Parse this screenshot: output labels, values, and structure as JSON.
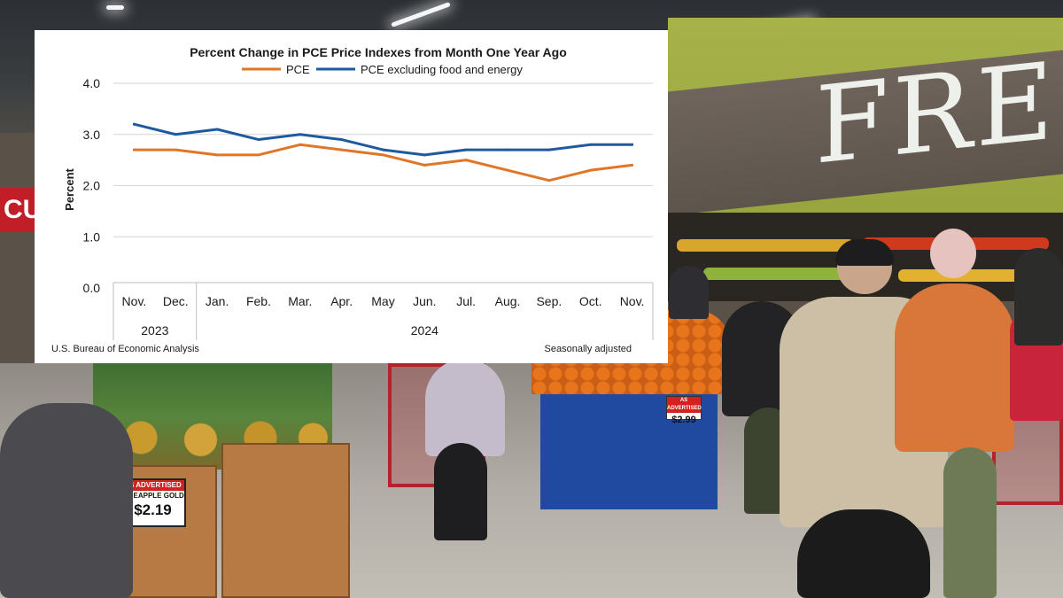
{
  "background_photo": {
    "store_sign": "FRES",
    "left_sign": "CU",
    "pineapple_tag": {
      "ribbon": "AS ADVERTISED",
      "name": "PINEAPPLE GOLD",
      "price": "$2.19"
    },
    "orange_tag": {
      "ribbon": "AS ADVERTISED",
      "price": "$2.99"
    }
  },
  "colors": {
    "pce": "#E07628",
    "pce_core": "#1F5AA0",
    "panel": "#ffffff"
  },
  "chart_data": {
    "type": "line",
    "title": "Percent Change in PCE Price Indexes from Month One Year Ago",
    "ylabel": "Percent",
    "xlabel": "",
    "ylim": [
      0,
      4
    ],
    "yticks": [
      "0.0",
      "1.0",
      "2.0",
      "3.0",
      "4.0"
    ],
    "ytick_values": [
      0,
      1,
      2,
      3,
      4
    ],
    "grid": true,
    "legend_position": "top-center",
    "categories": [
      "Nov.",
      "Dec.",
      "Jan.",
      "Feb.",
      "Mar.",
      "Apr.",
      "May",
      "Jun.",
      "Jul.",
      "Aug.",
      "Sep.",
      "Oct.",
      "Nov."
    ],
    "year_groups": [
      {
        "label": "2023",
        "start": 0,
        "end": 1
      },
      {
        "label": "2024",
        "start": 2,
        "end": 12
      }
    ],
    "series": [
      {
        "name": "PCE",
        "color": "#E07628",
        "values": [
          2.7,
          2.7,
          2.6,
          2.6,
          2.8,
          2.7,
          2.6,
          2.4,
          2.5,
          2.3,
          2.1,
          2.3,
          2.4
        ]
      },
      {
        "name": "PCE excluding food and energy",
        "color": "#1F5AA0",
        "values": [
          3.2,
          3.0,
          3.1,
          2.9,
          3.0,
          2.9,
          2.7,
          2.6,
          2.7,
          2.7,
          2.7,
          2.8,
          2.8
        ]
      }
    ],
    "source": "U.S. Bureau of Economic Analysis",
    "note": "Seasonally adjusted"
  }
}
